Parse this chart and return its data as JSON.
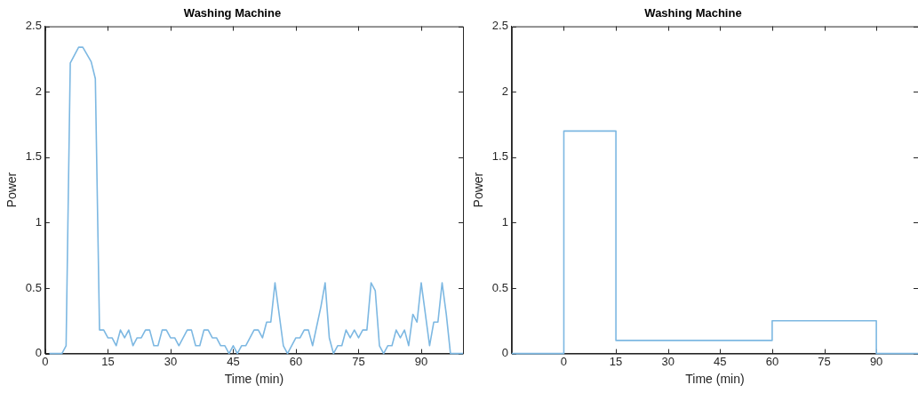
{
  "chart_data": [
    {
      "type": "line",
      "title": "Washing Machine",
      "xlabel": "Time (min)",
      "ylabel": "Power",
      "color": "#7db8e2",
      "x": [
        1,
        4,
        5,
        6,
        8,
        9,
        11,
        12,
        13,
        14,
        15,
        16,
        17,
        18,
        19,
        20,
        21,
        22,
        23,
        24,
        25,
        26,
        27,
        28,
        29,
        30,
        31,
        32,
        34,
        35,
        36,
        37,
        38,
        39,
        40,
        41,
        42,
        43,
        44,
        45,
        46,
        47,
        48,
        50,
        51,
        52,
        53,
        54,
        55,
        57,
        58,
        60,
        61,
        62,
        63,
        64,
        66,
        67,
        68,
        69,
        70,
        71,
        72,
        73,
        74,
        75,
        76,
        77,
        78,
        79,
        80,
        81,
        82,
        83,
        84,
        85,
        86,
        87,
        88,
        89,
        90,
        91,
        92,
        93,
        94,
        95,
        96,
        97,
        100
      ],
      "values": [
        0,
        0,
        0.06,
        2.22,
        2.34,
        2.34,
        2.23,
        2.1,
        0.18,
        0.18,
        0.12,
        0.12,
        0.06,
        0.18,
        0.12,
        0.18,
        0.06,
        0.12,
        0.12,
        0.18,
        0.18,
        0.06,
        0.06,
        0.18,
        0.18,
        0.12,
        0.12,
        0.06,
        0.18,
        0.18,
        0.06,
        0.06,
        0.18,
        0.18,
        0.12,
        0.12,
        0.06,
        0.06,
        0,
        0.06,
        0,
        0.06,
        0.06,
        0.18,
        0.18,
        0.12,
        0.24,
        0.24,
        0.54,
        0.06,
        0,
        0.12,
        0.12,
        0.18,
        0.18,
        0.06,
        0.36,
        0.54,
        0.12,
        0,
        0.06,
        0.06,
        0.18,
        0.12,
        0.18,
        0.12,
        0.18,
        0.18,
        0.54,
        0.48,
        0.06,
        0,
        0.06,
        0.06,
        0.18,
        0.12,
        0.18,
        0.06,
        0.3,
        0.24,
        0.54,
        0.3,
        0.06,
        0.24,
        0.24,
        0.54,
        0.3,
        0,
        0
      ],
      "xlim": [
        0,
        100
      ],
      "xticks": [
        0,
        15,
        30,
        45,
        60,
        75,
        90
      ],
      "ylim": [
        0,
        2.5
      ],
      "yticks": [
        0,
        0.5,
        1,
        1.5,
        2,
        2.5
      ],
      "grid": false,
      "legend": false
    },
    {
      "type": "step",
      "title": "Washing Machine",
      "xlabel": "Time (min)",
      "ylabel": "Power",
      "color": "#7db8e2",
      "x": [
        -15,
        0,
        15,
        60,
        90,
        102
      ],
      "values": [
        0,
        1.7,
        0.1,
        0.25,
        0,
        0
      ],
      "xlim": [
        -15,
        102
      ],
      "xticks": [
        0,
        15,
        30,
        45,
        60,
        75,
        90
      ],
      "ylim": [
        0,
        2.5
      ],
      "yticks": [
        0,
        0.5,
        1,
        1.5,
        2,
        2.5
      ],
      "grid": false,
      "legend": false
    }
  ]
}
